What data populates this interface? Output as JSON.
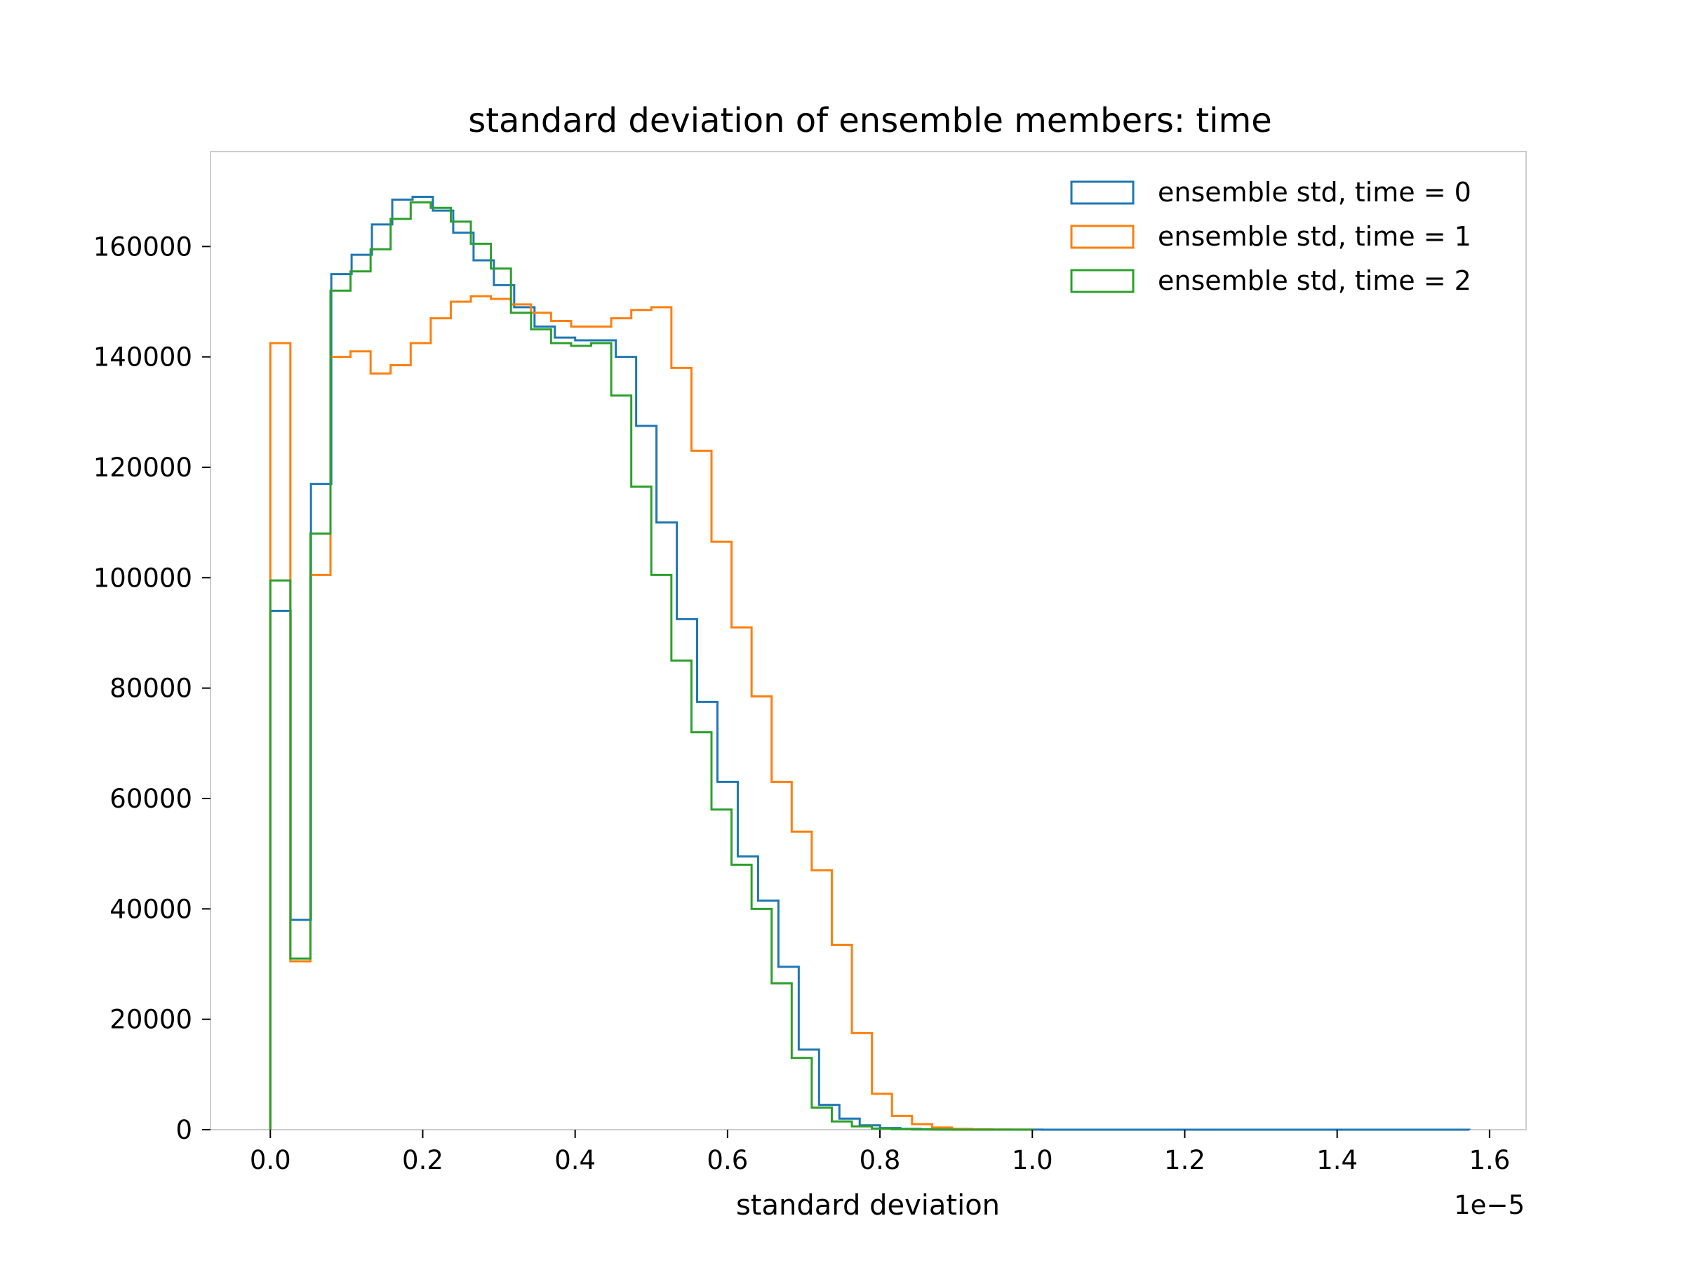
{
  "chart_data": {
    "type": "histogram",
    "title": "standard deviation of ensemble members: time",
    "xlabel": "standard deviation",
    "ylabel": "",
    "x_offset_label": "1e−5",
    "xlim": [
      -0.0785,
      1.648
    ],
    "ylim": [
      0,
      177200
    ],
    "x_ticks": [
      0.0,
      0.2,
      0.4,
      0.6,
      0.8,
      1.0,
      1.2,
      1.4,
      1.6
    ],
    "x_tick_labels": [
      "0.0",
      "0.2",
      "0.4",
      "0.6",
      "0.8",
      "1.0",
      "1.2",
      "1.4",
      "1.6"
    ],
    "y_ticks": [
      0,
      20000,
      40000,
      60000,
      80000,
      100000,
      120000,
      140000,
      160000
    ],
    "y_tick_labels": [
      "0",
      "20000",
      "40000",
      "60000",
      "80000",
      "100000",
      "120000",
      "140000",
      "160000"
    ],
    "grid": false,
    "legend_position": "top-right",
    "histtype": "step",
    "bin_width": 0.02645,
    "series": [
      {
        "name": "ensemble std, time = 0",
        "color": "#1f77b4",
        "x_start": 0.0,
        "x_end": 1.5736,
        "counts": [
          94000,
          38000,
          117000,
          155000,
          158500,
          164000,
          168500,
          169000,
          166500,
          162500,
          157500,
          153000,
          149000,
          145500,
          143500,
          143000,
          143000,
          140000,
          127500,
          110000,
          92500,
          77500,
          63000,
          49500,
          41500,
          29500,
          14500,
          4500,
          2000,
          800,
          300,
          150,
          80,
          50,
          30,
          20,
          15,
          10,
          8,
          6,
          5,
          4,
          3,
          3,
          2,
          2,
          2,
          1,
          1,
          1,
          1,
          1,
          1,
          1,
          1,
          1,
          1,
          1,
          1
        ]
      },
      {
        "name": "ensemble std, time = 1",
        "color": "#ff7f0e",
        "x_start": 0.0,
        "x_end": 1.0,
        "counts": [
          142500,
          30500,
          100500,
          140000,
          141000,
          137000,
          138500,
          142500,
          147000,
          150000,
          151000,
          150500,
          149500,
          148000,
          146500,
          145500,
          145500,
          147000,
          148500,
          149000,
          138000,
          123000,
          106500,
          91000,
          78500,
          63000,
          54000,
          47000,
          33500,
          17500,
          6500,
          2500,
          1000,
          400,
          150,
          60,
          30,
          10
        ]
      },
      {
        "name": "ensemble std, time = 2",
        "color": "#2ca02c",
        "x_start": 0.0,
        "x_end": 1.0,
        "counts": [
          99500,
          31000,
          108000,
          152000,
          155500,
          159500,
          165000,
          168000,
          167000,
          164500,
          160500,
          156000,
          148000,
          145000,
          142500,
          142000,
          142500,
          133000,
          116500,
          100500,
          85000,
          72000,
          58000,
          48000,
          40000,
          26500,
          13000,
          4000,
          1500,
          600,
          200,
          80,
          30,
          15,
          8,
          5,
          3,
          1
        ]
      }
    ]
  }
}
